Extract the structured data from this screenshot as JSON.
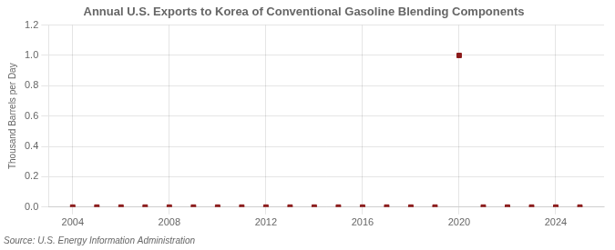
{
  "chart_data": {
    "type": "scatter",
    "title": "Annual U.S. Exports to Korea of Conventional Gasoline Blending Components",
    "y_label": "Thousand Barrels per Day",
    "annotations": [
      "Source: U.S. Energy Information Administration"
    ],
    "x": [
      2004,
      2005,
      2006,
      2007,
      2008,
      2009,
      2010,
      2011,
      2012,
      2013,
      2014,
      2015,
      2016,
      2017,
      2018,
      2019,
      2020,
      2021,
      2022,
      2023,
      2024,
      2025
    ],
    "values": [
      0.0,
      0.0,
      0.0,
      0.0,
      0.0,
      0.0,
      0.0,
      0.0,
      0.0,
      0.0,
      0.0,
      0.0,
      0.0,
      0.0,
      0.0,
      0.0,
      1.0,
      0.0,
      0.0,
      0.0,
      0.0,
      0.0
    ],
    "color": "#8b1a1a",
    "marker": "square",
    "xlim": [
      2003,
      2026
    ],
    "xticks": [
      2004,
      2008,
      2012,
      2016,
      2020,
      2024
    ],
    "ylim": [
      0.0,
      1.2
    ],
    "yticks": [
      {
        "value": 0.0,
        "label": "0.0"
      },
      0.2,
      0.4,
      0.6,
      0.8,
      {
        "value": 1.0,
        "label": "1.0"
      },
      1.2
    ],
    "grid": true
  }
}
